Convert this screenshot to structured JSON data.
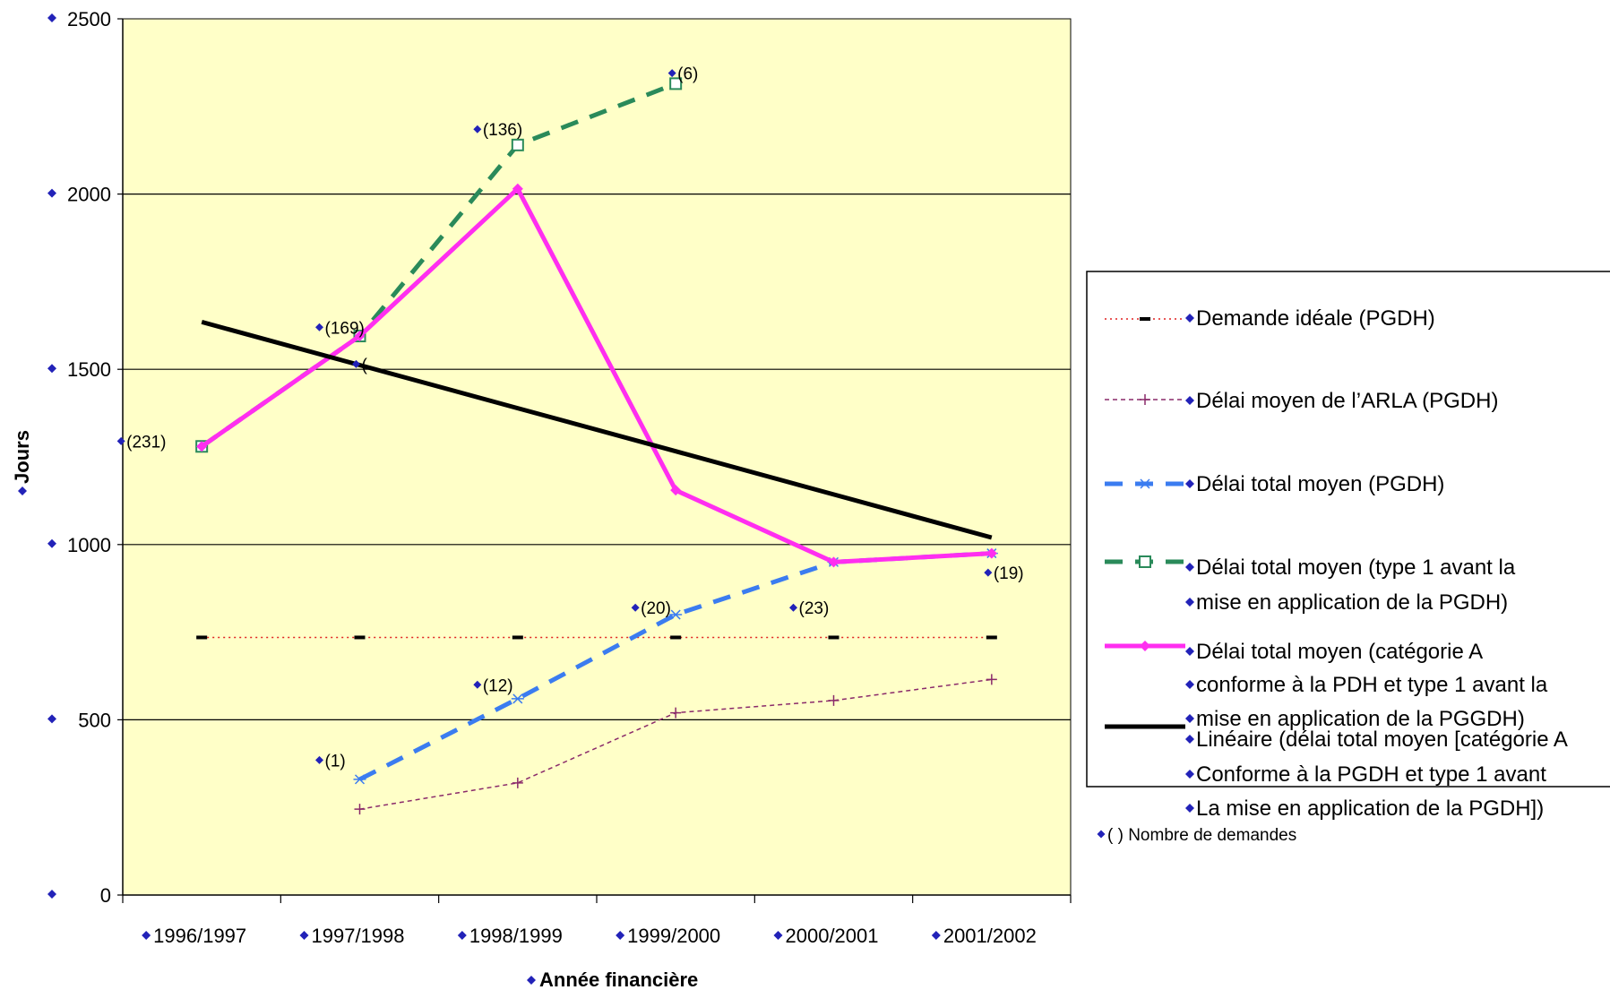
{
  "chart_data": {
    "type": "line",
    "xlabel": "Année financière",
    "ylabel": "Jours",
    "ylim": [
      0,
      2500
    ],
    "yticks": [
      0,
      500,
      1000,
      1500,
      2000,
      2500
    ],
    "categories": [
      "1996/1997",
      "1997/1998",
      "1998/1999",
      "1999/2000",
      "2000/2001",
      "2001/2002"
    ],
    "grid": true,
    "legend_position": "right",
    "colors": {
      "plot_bg": "#ffffc8",
      "ideal": "#e02020",
      "ideal_marker": "#000000",
      "arla": "#8a2a6a",
      "total_pgdh": "#3b7cf0",
      "type1": "#2a8a5a",
      "catA": "#ff2ef0",
      "linear": "#000000"
    },
    "series": [
      {
        "name": "Demande idéale (PGDH)",
        "values": [
          735,
          735,
          735,
          735,
          735,
          735
        ]
      },
      {
        "name": "Délai moyen de l’ARLA (PGDH)",
        "values": [
          null,
          245,
          320,
          520,
          555,
          615
        ]
      },
      {
        "name": "Délai total moyen (PGDH)",
        "values": [
          null,
          330,
          560,
          800,
          950,
          975
        ]
      },
      {
        "name": "Délai total moyen (type 1 avant la mise en application de la PGDH)",
        "values": [
          1280,
          1595,
          2140,
          2315,
          null,
          null
        ]
      },
      {
        "name": "Délai total moyen (catégorie A conforme à la PDH et type 1 avant la mise en application de la PGGDH)",
        "values": [
          1280,
          1595,
          2015,
          1155,
          950,
          975
        ]
      },
      {
        "name": "Linéaire (délai total moyen [catégorie A Conforme à la PGDH et type 1 avant La mise en application de la PGDH])",
        "values": [
          1635,
          1512,
          1389,
          1266,
          1143,
          1020
        ]
      }
    ],
    "annotations": [
      {
        "text": "(231)",
        "x": "1996/1997",
        "y": 1295
      },
      {
        "text": "(169)",
        "x": "1997/1998",
        "y": 1620
      },
      {
        "text": "(",
        "x": "1997/1998",
        "y": 1515
      },
      {
        "text": "(1)",
        "x": "1997/1998",
        "y": 385
      },
      {
        "text": "(136)",
        "x": "1998/1999",
        "y": 2185
      },
      {
        "text": "(12)",
        "x": "1998/1999",
        "y": 600
      },
      {
        "text": "(6)",
        "x": "1999/2000",
        "y": 2345
      },
      {
        "text": "(20)",
        "x": "1999/2000",
        "y": 820
      },
      {
        "text": "(23)",
        "x": "2000/2001",
        "y": 820
      },
      {
        "text": "(19)",
        "x": "2001/2002",
        "y": 920
      }
    ],
    "legend": {
      "lines": [
        "Demande idéale (PGDH)",
        "Délai moyen de l’ARLA (PGDH)",
        "Délai total moyen (PGDH)",
        "Délai total moyen (type 1 avant la",
        "mise en application de la PGDH)",
        "Délai total moyen (catégorie A",
        "conforme à la PDH et type 1 avant la",
        "mise en application de la PGGDH)",
        "Linéaire (délai total moyen [catégorie A",
        "Conforme à la PGDH et type 1 avant",
        "La mise en application de la PGDH])"
      ],
      "note": "( ) Nombre de demandes"
    }
  }
}
